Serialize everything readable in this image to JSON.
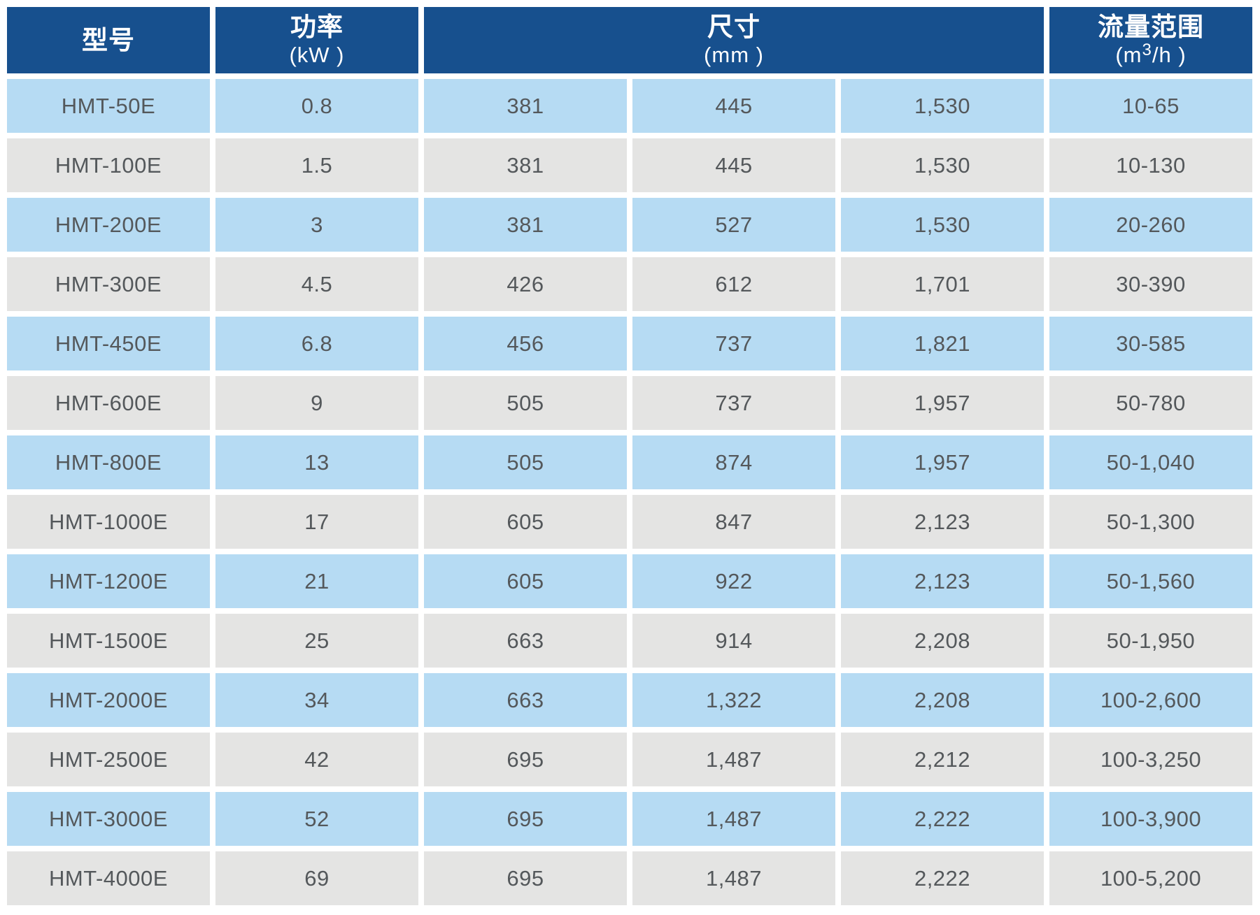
{
  "colors": {
    "header_bg": "#17508E",
    "header_text": "#FFFFFF",
    "row_blue": "#B6DBF3",
    "row_gray": "#E4E4E3",
    "cell_text": "#54585B",
    "gap": "#FFFFFF"
  },
  "table": {
    "headers": [
      {
        "title": "型号",
        "unit": ""
      },
      {
        "title": "功率",
        "unit": "(kW )"
      },
      {
        "title": "尺寸",
        "unit": "(mm )"
      },
      {
        "title": "流量范围",
        "unit_prefix": "(m",
        "unit_sup": "3",
        "unit_suffix": "/h )"
      }
    ],
    "rows": [
      {
        "model": "HMT-50E",
        "power_kw": "0.8",
        "dims_mm": [
          "381",
          "445",
          "1,530"
        ],
        "flow_range": "10-65"
      },
      {
        "model": "HMT-100E",
        "power_kw": "1.5",
        "dims_mm": [
          "381",
          "445",
          "1,530"
        ],
        "flow_range": "10-130"
      },
      {
        "model": "HMT-200E",
        "power_kw": "3",
        "dims_mm": [
          "381",
          "527",
          "1,530"
        ],
        "flow_range": "20-260"
      },
      {
        "model": "HMT-300E",
        "power_kw": "4.5",
        "dims_mm": [
          "426",
          "612",
          "1,701"
        ],
        "flow_range": "30-390"
      },
      {
        "model": "HMT-450E",
        "power_kw": "6.8",
        "dims_mm": [
          "456",
          "737",
          "1,821"
        ],
        "flow_range": "30-585"
      },
      {
        "model": "HMT-600E",
        "power_kw": "9",
        "dims_mm": [
          "505",
          "737",
          "1,957"
        ],
        "flow_range": "50-780"
      },
      {
        "model": "HMT-800E",
        "power_kw": "13",
        "dims_mm": [
          "505",
          "874",
          "1,957"
        ],
        "flow_range": "50-1,040"
      },
      {
        "model": "HMT-1000E",
        "power_kw": "17",
        "dims_mm": [
          "605",
          "847",
          "2,123"
        ],
        "flow_range": "50-1,300"
      },
      {
        "model": "HMT-1200E",
        "power_kw": "21",
        "dims_mm": [
          "605",
          "922",
          "2,123"
        ],
        "flow_range": "50-1,560"
      },
      {
        "model": "HMT-1500E",
        "power_kw": "25",
        "dims_mm": [
          "663",
          "914",
          "2,208"
        ],
        "flow_range": "50-1,950"
      },
      {
        "model": "HMT-2000E",
        "power_kw": "34",
        "dims_mm": [
          "663",
          "1,322",
          "2,208"
        ],
        "flow_range": "100-2,600"
      },
      {
        "model": "HMT-2500E",
        "power_kw": "42",
        "dims_mm": [
          "695",
          "1,487",
          "2,212"
        ],
        "flow_range": "100-3,250"
      },
      {
        "model": "HMT-3000E",
        "power_kw": "52",
        "dims_mm": [
          "695",
          "1,487",
          "2,222"
        ],
        "flow_range": "100-3,900"
      },
      {
        "model": "HMT-4000E",
        "power_kw": "69",
        "dims_mm": [
          "695",
          "1,487",
          "2,222"
        ],
        "flow_range": "100-5,200"
      }
    ]
  }
}
